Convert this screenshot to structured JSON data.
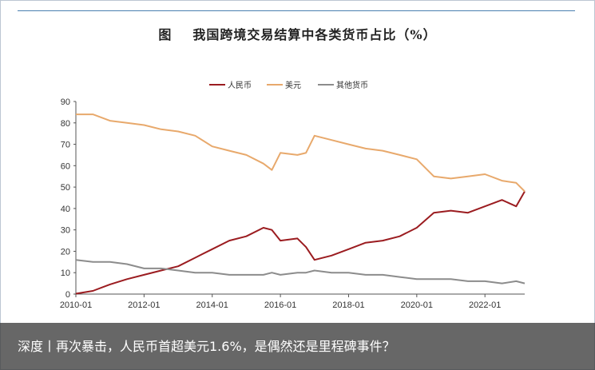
{
  "title": {
    "fig_label": "图",
    "text": "我国跨境交易结算中各类货币占比（%）"
  },
  "caption": "深度丨再次暴击，人民币首超美元1.6%，是偶然还是里程碑事件？",
  "chart_data": {
    "type": "line",
    "title": "我国跨境交易结算中各类货币占比（%）",
    "xlabel": "",
    "ylabel": "",
    "xlim": [
      "2010-01",
      "2023-03"
    ],
    "ylim": [
      0,
      90
    ],
    "y_ticks": [
      0,
      10,
      20,
      30,
      40,
      50,
      60,
      70,
      80,
      90
    ],
    "x_ticks": [
      "2010-01",
      "2012-01",
      "2014-01",
      "2016-01",
      "2018-01",
      "2020-01",
      "2022-01"
    ],
    "grid": false,
    "legend_position": "top-center",
    "series": [
      {
        "name": "人民币",
        "color": "#9b1c20",
        "points": [
          [
            "2010-01",
            0.2
          ],
          [
            "2010-07",
            1.5
          ],
          [
            "2011-01",
            4.5
          ],
          [
            "2011-07",
            7
          ],
          [
            "2012-01",
            9
          ],
          [
            "2012-07",
            11
          ],
          [
            "2013-01",
            13
          ],
          [
            "2013-07",
            17
          ],
          [
            "2014-01",
            21
          ],
          [
            "2014-07",
            25
          ],
          [
            "2015-01",
            27
          ],
          [
            "2015-07",
            31
          ],
          [
            "2015-10",
            30
          ],
          [
            "2016-01",
            25
          ],
          [
            "2016-07",
            26
          ],
          [
            "2016-10",
            22
          ],
          [
            "2017-01",
            16
          ],
          [
            "2017-07",
            18
          ],
          [
            "2018-01",
            21
          ],
          [
            "2018-07",
            24
          ],
          [
            "2019-01",
            25
          ],
          [
            "2019-07",
            27
          ],
          [
            "2020-01",
            31
          ],
          [
            "2020-07",
            38
          ],
          [
            "2021-01",
            39
          ],
          [
            "2021-07",
            38
          ],
          [
            "2022-01",
            41
          ],
          [
            "2022-07",
            44
          ],
          [
            "2022-12",
            41
          ],
          [
            "2023-03",
            48
          ]
        ]
      },
      {
        "name": "美元",
        "color": "#e8a96c",
        "points": [
          [
            "2010-01",
            84
          ],
          [
            "2010-07",
            84
          ],
          [
            "2011-01",
            81
          ],
          [
            "2011-07",
            80
          ],
          [
            "2012-01",
            79
          ],
          [
            "2012-07",
            77
          ],
          [
            "2013-01",
            76
          ],
          [
            "2013-07",
            74
          ],
          [
            "2014-01",
            69
          ],
          [
            "2014-07",
            67
          ],
          [
            "2015-01",
            65
          ],
          [
            "2015-07",
            61
          ],
          [
            "2015-10",
            58
          ],
          [
            "2016-01",
            66
          ],
          [
            "2016-07",
            65
          ],
          [
            "2016-10",
            66
          ],
          [
            "2017-01",
            74
          ],
          [
            "2017-07",
            72
          ],
          [
            "2018-01",
            70
          ],
          [
            "2018-07",
            68
          ],
          [
            "2019-01",
            67
          ],
          [
            "2019-07",
            65
          ],
          [
            "2020-01",
            63
          ],
          [
            "2020-07",
            55
          ],
          [
            "2021-01",
            54
          ],
          [
            "2021-07",
            55
          ],
          [
            "2022-01",
            56
          ],
          [
            "2022-07",
            53
          ],
          [
            "2022-12",
            52
          ],
          [
            "2023-03",
            48
          ]
        ]
      },
      {
        "name": "其他货币",
        "color": "#8c8c8c",
        "points": [
          [
            "2010-01",
            16
          ],
          [
            "2010-07",
            15
          ],
          [
            "2011-01",
            15
          ],
          [
            "2011-07",
            14
          ],
          [
            "2012-01",
            12
          ],
          [
            "2012-07",
            12
          ],
          [
            "2013-01",
            11
          ],
          [
            "2013-07",
            10
          ],
          [
            "2014-01",
            10
          ],
          [
            "2014-07",
            9
          ],
          [
            "2015-01",
            9
          ],
          [
            "2015-07",
            9
          ],
          [
            "2015-10",
            10
          ],
          [
            "2016-01",
            9
          ],
          [
            "2016-07",
            10
          ],
          [
            "2016-10",
            10
          ],
          [
            "2017-01",
            11
          ],
          [
            "2017-07",
            10
          ],
          [
            "2018-01",
            10
          ],
          [
            "2018-07",
            9
          ],
          [
            "2019-01",
            9
          ],
          [
            "2019-07",
            8
          ],
          [
            "2020-01",
            7
          ],
          [
            "2020-07",
            7
          ],
          [
            "2021-01",
            7
          ],
          [
            "2021-07",
            6
          ],
          [
            "2022-01",
            6
          ],
          [
            "2022-07",
            5
          ],
          [
            "2022-12",
            6
          ],
          [
            "2023-03",
            5
          ]
        ]
      }
    ]
  }
}
